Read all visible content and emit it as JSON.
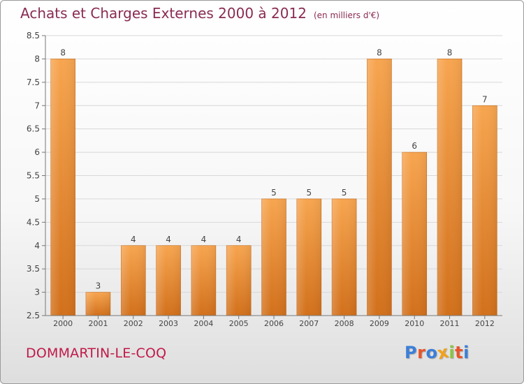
{
  "header": {
    "title": "Achats et Charges Externes 2000 à 2012",
    "unit": "(en milliers d'€)"
  },
  "footer": {
    "commune": "DOMMARTIN-LE-COQ",
    "brand": "Proxiti",
    "brand_colors": [
      "#3b7fd8",
      "#e8532a",
      "#3b7fd8",
      "#f2a21b",
      "#8ac43f",
      "#e8532a",
      "#3b7fd8"
    ]
  },
  "chart_data": {
    "type": "bar",
    "categories": [
      "2000",
      "2001",
      "2002",
      "2003",
      "2004",
      "2005",
      "2006",
      "2007",
      "2008",
      "2009",
      "2010",
      "2011",
      "2012"
    ],
    "values": [
      8,
      3,
      4,
      4,
      4,
      4,
      5,
      5,
      5,
      8,
      6,
      8,
      7
    ],
    "data_labels": [
      "8",
      "3",
      "4",
      "4",
      "4",
      "4",
      "5",
      "5",
      "5",
      "8",
      "6",
      "8",
      "7"
    ],
    "y_ticks": [
      "2.5",
      "3",
      "3.5",
      "4",
      "4.5",
      "5",
      "5.5",
      "6",
      "6.5",
      "7",
      "7.5",
      "8",
      "8.5"
    ],
    "ylim": [
      2.5,
      8.5
    ],
    "grid": true,
    "bar_color_top": "#f7a54f",
    "bar_color_bottom": "#d2701b"
  }
}
